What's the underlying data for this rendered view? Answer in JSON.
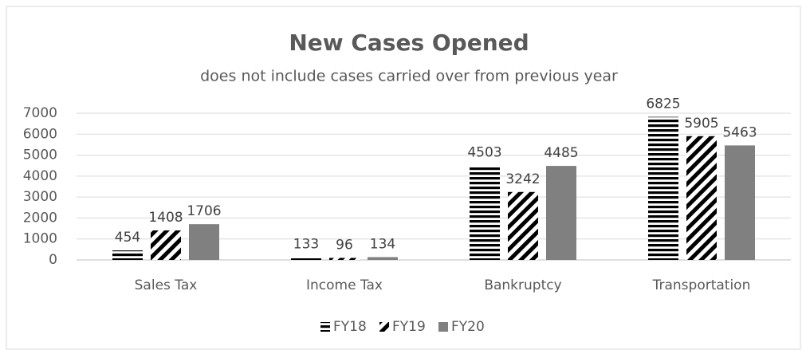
{
  "chart_data": {
    "type": "bar",
    "title": "New Cases Opened",
    "subtitle": "does not include cases carried over from previous year",
    "categories": [
      "Sales Tax",
      "Income Tax",
      "Bankruptcy",
      "Transportation"
    ],
    "series": [
      {
        "name": "FY18",
        "color": "#000000",
        "pattern": "horizontal",
        "values": [
          454,
          133,
          4503,
          6825
        ]
      },
      {
        "name": "FY19",
        "color": "#000000",
        "pattern": "diagonal",
        "values": [
          1408,
          96,
          3242,
          5905
        ]
      },
      {
        "name": "FY20",
        "color": "#808080",
        "pattern": "solid",
        "values": [
          1706,
          134,
          4485,
          5463
        ]
      }
    ],
    "ylim": [
      0,
      7000
    ],
    "yticks": [
      0,
      1000,
      2000,
      3000,
      4000,
      5000,
      6000,
      7000
    ],
    "grid": true,
    "legend": "bottom"
  }
}
